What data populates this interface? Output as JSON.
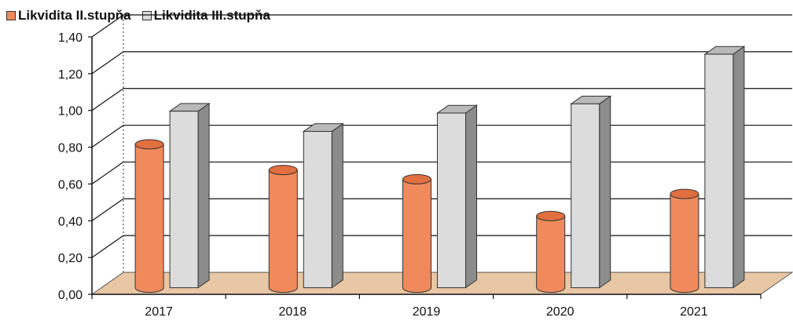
{
  "chart_data": {
    "type": "bar",
    "categories": [
      "2017",
      "2018",
      "2019",
      "2020",
      "2021"
    ],
    "series": [
      {
        "name": "Likvidita II.stupňa",
        "values": [
          0.78,
          0.64,
          0.59,
          0.39,
          0.51
        ],
        "color": "#f08a5c",
        "shape": "cylinder"
      },
      {
        "name": "Likvidita III.stupňa",
        "values": [
          0.96,
          0.85,
          0.95,
          1.0,
          1.27
        ],
        "color": "#dcdcdc",
        "shape": "box"
      }
    ],
    "y_ticks": [
      "0,00",
      "0,20",
      "0,40",
      "0,60",
      "0,80",
      "1,00",
      "1,20",
      "1,40"
    ],
    "ylim": [
      0,
      1.4
    ],
    "grid": true,
    "legend_position": "top-left",
    "floor_color": "#e8c7a4"
  }
}
